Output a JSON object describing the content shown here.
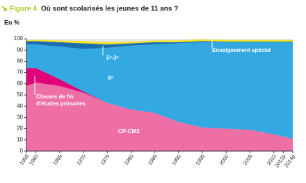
{
  "chart_data": {
    "type": "stacked_area",
    "figure_label": "Figure 4",
    "title": "Où sont scolarisés les jeunes de 11 ans ?",
    "y_label": "En %",
    "x": [
      1958,
      1960,
      1965,
      1970,
      1975,
      1980,
      1985,
      1990,
      1995,
      2000,
      2005,
      2010,
      2012,
      2014
    ],
    "series": [
      {
        "name": "CP-CM2",
        "color": "#ee6fa6",
        "values": [
          58,
          61,
          58,
          52,
          43,
          37,
          34,
          26,
          21,
          20,
          19,
          15,
          13,
          11
        ]
      },
      {
        "name": "Classes de fin d'études primaires",
        "color": "#e2007a",
        "values": [
          16,
          13,
          6,
          1,
          0,
          0,
          0,
          0,
          0,
          0,
          0,
          0,
          0,
          0
        ]
      },
      {
        "name": "6ᵉ",
        "color": "#34a9e1",
        "values": [
          21,
          21,
          29,
          38,
          49,
          57,
          61,
          70,
          76,
          77,
          78,
          82,
          84,
          86
        ]
      },
      {
        "name": "5ᵉ-3ᵉ",
        "color": "#1b6fae",
        "values": [
          3,
          3,
          4,
          5,
          3,
          2,
          2,
          1,
          1,
          0.5,
          0.5,
          0.5,
          0.5,
          0.5
        ]
      },
      {
        "name": "Enseignement spécial",
        "color": "#f4e425",
        "values": [
          1,
          1,
          1.5,
          2,
          2,
          1.5,
          1.5,
          1.5,
          1.5,
          1.5,
          1.5,
          1.5,
          1.5,
          1.5
        ]
      }
    ],
    "xlim": [
      1958,
      2014
    ],
    "xticks": [
      1958,
      1960,
      1965,
      1970,
      1975,
      1980,
      1985,
      1990,
      1995,
      2000,
      2005,
      2010,
      {
        "value": 2012,
        "label": "2012p"
      },
      {
        "value": 2014,
        "label": "2014p"
      }
    ],
    "ylim": [
      0,
      100
    ],
    "yticks": [
      0,
      10,
      20,
      30,
      40,
      50,
      60,
      70,
      80,
      90,
      100
    ]
  }
}
